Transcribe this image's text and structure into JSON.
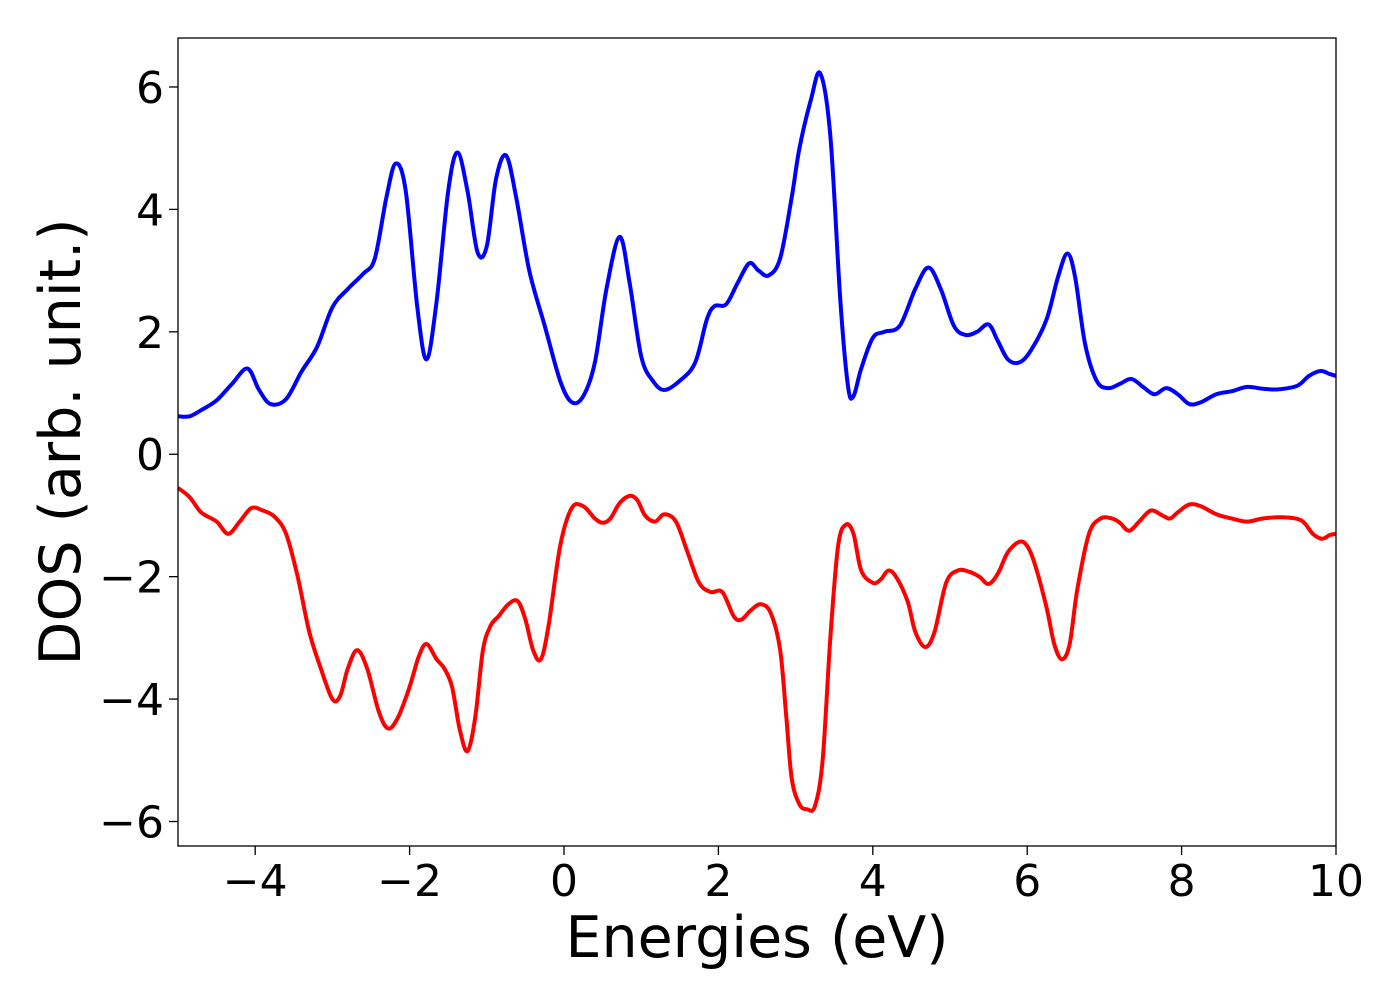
{
  "chart_data": {
    "type": "line",
    "title": "",
    "xlabel": "Energies (eV)",
    "ylabel": "DOS (arb. unit.)",
    "xlim": [
      -5,
      10
    ],
    "ylim": [
      -6.4,
      6.8
    ],
    "grid": false,
    "xticks": [
      {
        "value": -4,
        "label": "−4"
      },
      {
        "value": -2,
        "label": "−2"
      },
      {
        "value": 0,
        "label": "0"
      },
      {
        "value": 2,
        "label": "2"
      },
      {
        "value": 4,
        "label": "4"
      },
      {
        "value": 6,
        "label": "6"
      },
      {
        "value": 8,
        "label": "8"
      },
      {
        "value": 10,
        "label": "10"
      }
    ],
    "yticks": [
      {
        "value": -6,
        "label": "−6"
      },
      {
        "value": -4,
        "label": "−4"
      },
      {
        "value": -2,
        "label": "−2"
      },
      {
        "value": 0,
        "label": "0"
      },
      {
        "value": 2,
        "label": "2"
      },
      {
        "value": 4,
        "label": "4"
      },
      {
        "value": 6,
        "label": "6"
      }
    ],
    "series": [
      {
        "color": "#0000ff",
        "points": [
          [
            -5.0,
            0.62
          ],
          [
            -4.85,
            0.62
          ],
          [
            -4.7,
            0.72
          ],
          [
            -4.5,
            0.88
          ],
          [
            -4.3,
            1.15
          ],
          [
            -4.1,
            1.4
          ],
          [
            -3.95,
            1.05
          ],
          [
            -3.8,
            0.82
          ],
          [
            -3.6,
            0.9
          ],
          [
            -3.4,
            1.35
          ],
          [
            -3.2,
            1.75
          ],
          [
            -3.0,
            2.4
          ],
          [
            -2.8,
            2.7
          ],
          [
            -2.6,
            2.95
          ],
          [
            -2.45,
            3.2
          ],
          [
            -2.3,
            4.2
          ],
          [
            -2.18,
            4.75
          ],
          [
            -2.05,
            4.3
          ],
          [
            -1.9,
            2.4
          ],
          [
            -1.78,
            1.55
          ],
          [
            -1.65,
            2.5
          ],
          [
            -1.5,
            4.3
          ],
          [
            -1.38,
            4.93
          ],
          [
            -1.25,
            4.3
          ],
          [
            -1.12,
            3.3
          ],
          [
            -1.0,
            3.4
          ],
          [
            -0.88,
            4.5
          ],
          [
            -0.75,
            4.88
          ],
          [
            -0.62,
            4.2
          ],
          [
            -0.45,
            3.0
          ],
          [
            -0.25,
            2.1
          ],
          [
            -0.05,
            1.2
          ],
          [
            0.1,
            0.85
          ],
          [
            0.25,
            0.95
          ],
          [
            0.4,
            1.5
          ],
          [
            0.55,
            2.7
          ],
          [
            0.72,
            3.55
          ],
          [
            0.85,
            2.8
          ],
          [
            1.0,
            1.6
          ],
          [
            1.15,
            1.2
          ],
          [
            1.3,
            1.05
          ],
          [
            1.5,
            1.2
          ],
          [
            1.7,
            1.5
          ],
          [
            1.85,
            2.2
          ],
          [
            1.95,
            2.42
          ],
          [
            2.1,
            2.45
          ],
          [
            2.25,
            2.8
          ],
          [
            2.4,
            3.12
          ],
          [
            2.52,
            3.0
          ],
          [
            2.65,
            2.92
          ],
          [
            2.8,
            3.2
          ],
          [
            2.95,
            4.2
          ],
          [
            3.05,
            5.0
          ],
          [
            3.2,
            5.8
          ],
          [
            3.32,
            6.22
          ],
          [
            3.45,
            5.2
          ],
          [
            3.58,
            2.5
          ],
          [
            3.68,
            1.1
          ],
          [
            3.75,
            0.95
          ],
          [
            3.85,
            1.4
          ],
          [
            4.0,
            1.9
          ],
          [
            4.15,
            2.0
          ],
          [
            4.35,
            2.1
          ],
          [
            4.55,
            2.7
          ],
          [
            4.72,
            3.05
          ],
          [
            4.88,
            2.7
          ],
          [
            5.05,
            2.1
          ],
          [
            5.2,
            1.95
          ],
          [
            5.35,
            2.0
          ],
          [
            5.5,
            2.12
          ],
          [
            5.62,
            1.85
          ],
          [
            5.75,
            1.55
          ],
          [
            5.9,
            1.5
          ],
          [
            6.05,
            1.7
          ],
          [
            6.25,
            2.2
          ],
          [
            6.4,
            2.9
          ],
          [
            6.52,
            3.28
          ],
          [
            6.62,
            2.9
          ],
          [
            6.75,
            1.8
          ],
          [
            6.9,
            1.2
          ],
          [
            7.05,
            1.08
          ],
          [
            7.2,
            1.15
          ],
          [
            7.35,
            1.23
          ],
          [
            7.5,
            1.1
          ],
          [
            7.65,
            0.98
          ],
          [
            7.8,
            1.08
          ],
          [
            7.95,
            0.98
          ],
          [
            8.1,
            0.82
          ],
          [
            8.25,
            0.85
          ],
          [
            8.45,
            0.98
          ],
          [
            8.65,
            1.03
          ],
          [
            8.85,
            1.1
          ],
          [
            9.05,
            1.07
          ],
          [
            9.25,
            1.06
          ],
          [
            9.5,
            1.12
          ],
          [
            9.65,
            1.28
          ],
          [
            9.8,
            1.36
          ],
          [
            9.92,
            1.31
          ],
          [
            10.0,
            1.28
          ]
        ]
      },
      {
        "color": "#ff0000",
        "points": [
          [
            -5.0,
            -0.55
          ],
          [
            -4.85,
            -0.7
          ],
          [
            -4.7,
            -0.95
          ],
          [
            -4.5,
            -1.1
          ],
          [
            -4.35,
            -1.3
          ],
          [
            -4.2,
            -1.1
          ],
          [
            -4.05,
            -0.88
          ],
          [
            -3.9,
            -0.92
          ],
          [
            -3.75,
            -1.02
          ],
          [
            -3.6,
            -1.3
          ],
          [
            -3.45,
            -2.0
          ],
          [
            -3.3,
            -2.9
          ],
          [
            -3.15,
            -3.5
          ],
          [
            -3.0,
            -4.0
          ],
          [
            -2.9,
            -3.95
          ],
          [
            -2.8,
            -3.5
          ],
          [
            -2.68,
            -3.2
          ],
          [
            -2.55,
            -3.5
          ],
          [
            -2.4,
            -4.2
          ],
          [
            -2.28,
            -4.48
          ],
          [
            -2.15,
            -4.3
          ],
          [
            -2.0,
            -3.8
          ],
          [
            -1.88,
            -3.3
          ],
          [
            -1.78,
            -3.1
          ],
          [
            -1.65,
            -3.35
          ],
          [
            -1.55,
            -3.5
          ],
          [
            -1.45,
            -3.8
          ],
          [
            -1.35,
            -4.5
          ],
          [
            -1.25,
            -4.85
          ],
          [
            -1.15,
            -4.3
          ],
          [
            -1.05,
            -3.2
          ],
          [
            -0.95,
            -2.8
          ],
          [
            -0.85,
            -2.65
          ],
          [
            -0.72,
            -2.45
          ],
          [
            -0.6,
            -2.4
          ],
          [
            -0.5,
            -2.7
          ],
          [
            -0.4,
            -3.2
          ],
          [
            -0.3,
            -3.35
          ],
          [
            -0.2,
            -2.8
          ],
          [
            -0.05,
            -1.5
          ],
          [
            0.1,
            -0.88
          ],
          [
            0.25,
            -0.85
          ],
          [
            0.4,
            -1.05
          ],
          [
            0.5,
            -1.12
          ],
          [
            0.6,
            -1.05
          ],
          [
            0.72,
            -0.8
          ],
          [
            0.85,
            -0.68
          ],
          [
            0.95,
            -0.75
          ],
          [
            1.05,
            -1.0
          ],
          [
            1.18,
            -1.1
          ],
          [
            1.3,
            -0.98
          ],
          [
            1.45,
            -1.1
          ],
          [
            1.6,
            -1.6
          ],
          [
            1.75,
            -2.1
          ],
          [
            1.9,
            -2.25
          ],
          [
            2.05,
            -2.25
          ],
          [
            2.2,
            -2.65
          ],
          [
            2.3,
            -2.7
          ],
          [
            2.42,
            -2.55
          ],
          [
            2.55,
            -2.45
          ],
          [
            2.68,
            -2.6
          ],
          [
            2.8,
            -3.2
          ],
          [
            2.88,
            -4.3
          ],
          [
            2.95,
            -5.3
          ],
          [
            3.05,
            -5.72
          ],
          [
            3.15,
            -5.8
          ],
          [
            3.25,
            -5.75
          ],
          [
            3.35,
            -5.0
          ],
          [
            3.45,
            -3.0
          ],
          [
            3.55,
            -1.5
          ],
          [
            3.65,
            -1.15
          ],
          [
            3.75,
            -1.3
          ],
          [
            3.85,
            -1.9
          ],
          [
            4.0,
            -2.1
          ],
          [
            4.1,
            -2.05
          ],
          [
            4.2,
            -1.9
          ],
          [
            4.3,
            -2.0
          ],
          [
            4.45,
            -2.4
          ],
          [
            4.55,
            -2.9
          ],
          [
            4.68,
            -3.15
          ],
          [
            4.8,
            -2.9
          ],
          [
            4.95,
            -2.1
          ],
          [
            5.1,
            -1.9
          ],
          [
            5.25,
            -1.92
          ],
          [
            5.38,
            -2.0
          ],
          [
            5.5,
            -2.12
          ],
          [
            5.62,
            -1.95
          ],
          [
            5.75,
            -1.6
          ],
          [
            5.9,
            -1.43
          ],
          [
            6.0,
            -1.5
          ],
          [
            6.1,
            -1.8
          ],
          [
            6.25,
            -2.5
          ],
          [
            6.35,
            -3.1
          ],
          [
            6.45,
            -3.35
          ],
          [
            6.55,
            -3.1
          ],
          [
            6.65,
            -2.2
          ],
          [
            6.8,
            -1.3
          ],
          [
            6.95,
            -1.05
          ],
          [
            7.1,
            -1.05
          ],
          [
            7.2,
            -1.12
          ],
          [
            7.32,
            -1.25
          ],
          [
            7.45,
            -1.1
          ],
          [
            7.6,
            -0.92
          ],
          [
            7.75,
            -1.0
          ],
          [
            7.85,
            -1.05
          ],
          [
            7.95,
            -0.95
          ],
          [
            8.1,
            -0.82
          ],
          [
            8.25,
            -0.85
          ],
          [
            8.45,
            -0.98
          ],
          [
            8.65,
            -1.05
          ],
          [
            8.85,
            -1.1
          ],
          [
            9.05,
            -1.05
          ],
          [
            9.3,
            -1.03
          ],
          [
            9.55,
            -1.08
          ],
          [
            9.7,
            -1.3
          ],
          [
            9.82,
            -1.38
          ],
          [
            9.92,
            -1.32
          ],
          [
            10.0,
            -1.3
          ]
        ]
      }
    ]
  }
}
